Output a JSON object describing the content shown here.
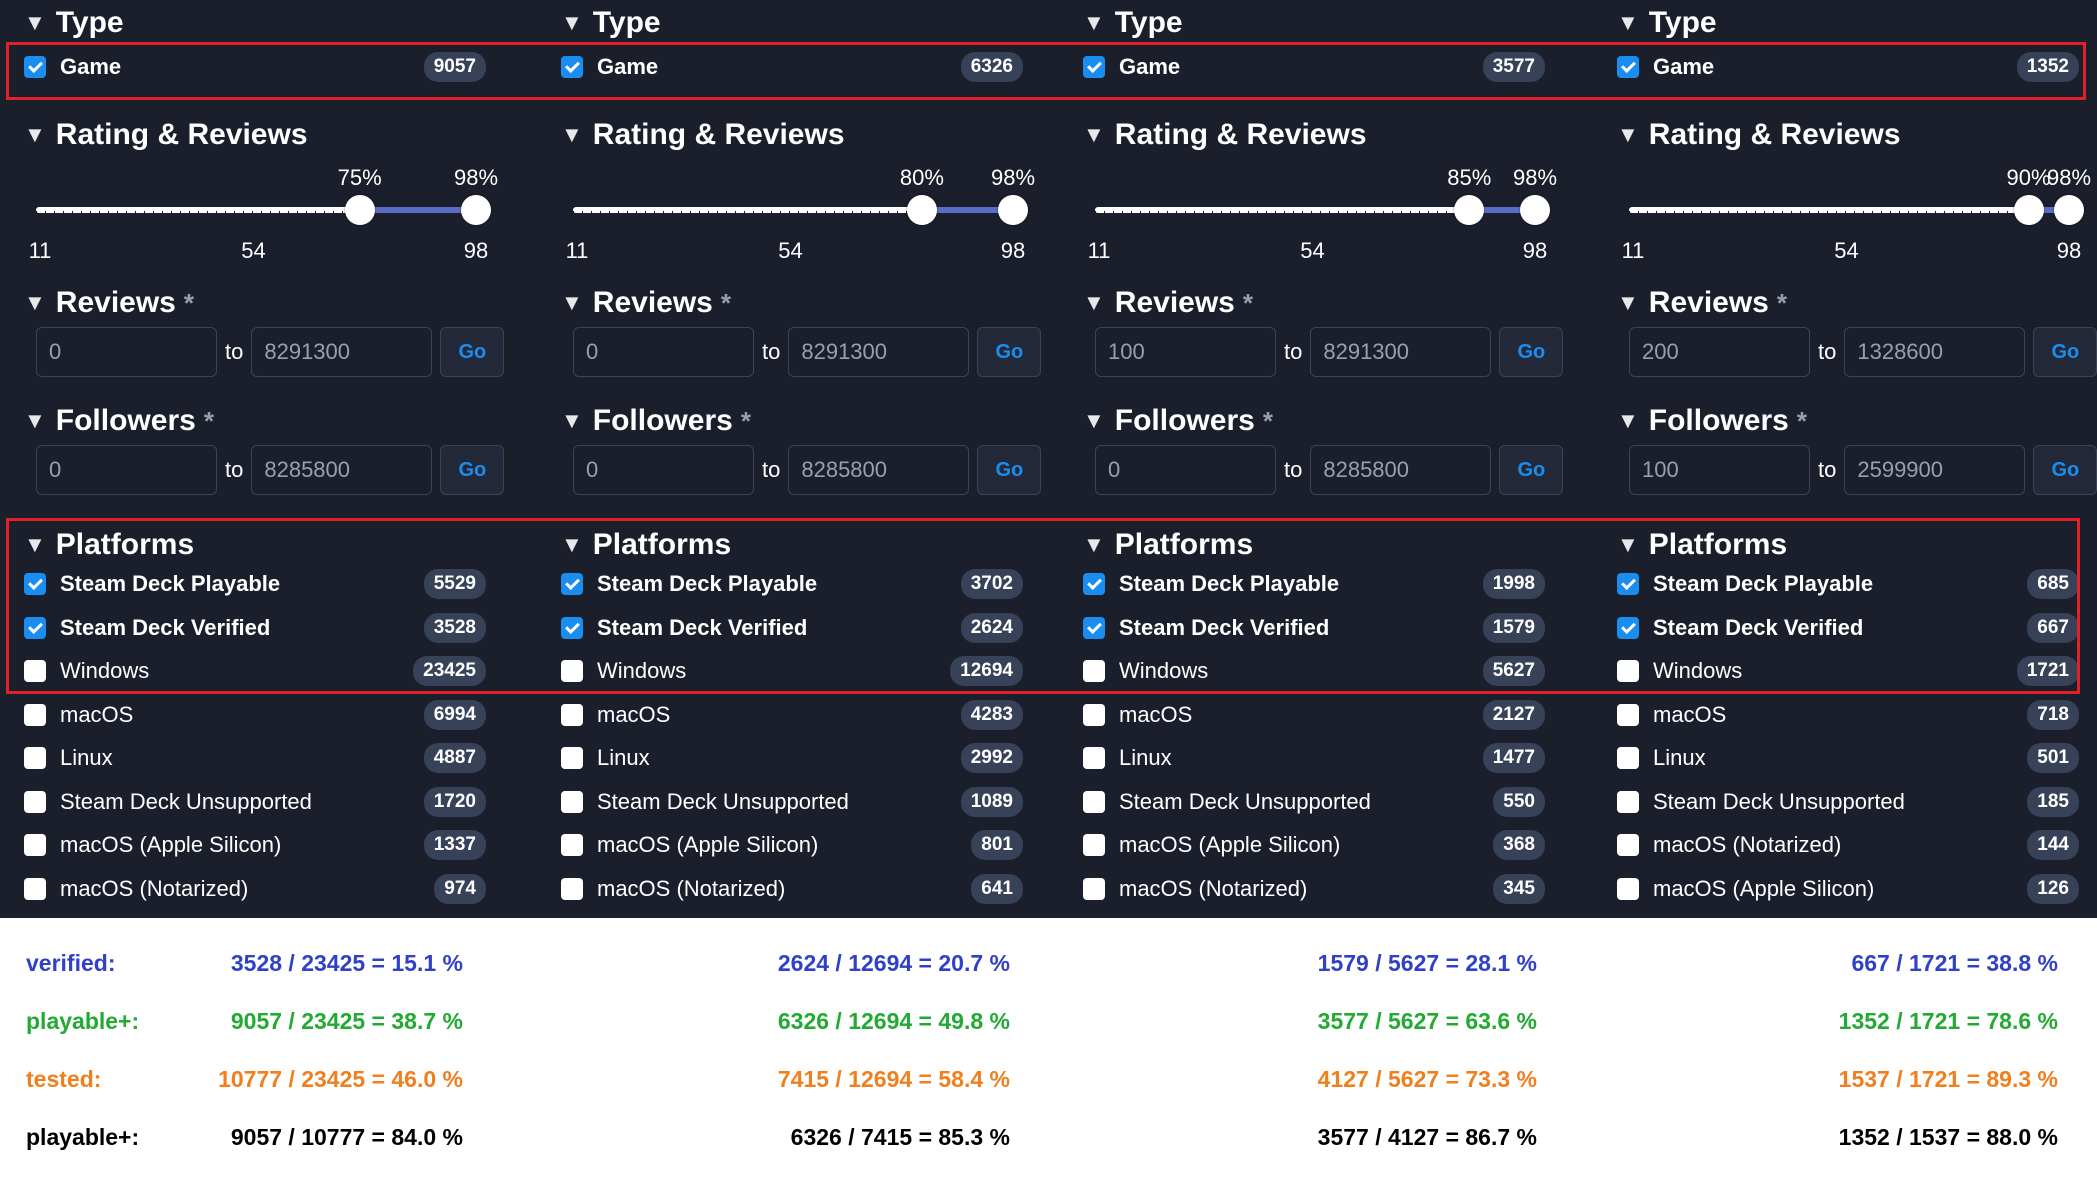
{
  "labels": {
    "type": "Type",
    "game": "Game",
    "rating": "Rating & Reviews",
    "reviews": "Reviews",
    "followers": "Followers",
    "platforms": "Platforms",
    "to": "to",
    "go": "Go",
    "asterisk": "*"
  },
  "axis": {
    "min": "11",
    "mid": "54",
    "max": "98"
  },
  "columns": [
    {
      "game_count": "9057",
      "slider_low": 75,
      "slider_high": 98,
      "pct_low": "75%",
      "pct_high": "98%",
      "reviews_from": "0",
      "reviews_to": "8291300",
      "followers_from": "0",
      "followers_to": "8285800",
      "platforms": [
        {
          "label": "Steam Deck Playable",
          "count": "5529",
          "checked": true
        },
        {
          "label": "Steam Deck Verified",
          "count": "3528",
          "checked": true
        },
        {
          "label": "Windows",
          "count": "23425",
          "checked": false
        },
        {
          "label": "macOS",
          "count": "6994",
          "checked": false
        },
        {
          "label": "Linux",
          "count": "4887",
          "checked": false
        },
        {
          "label": "Steam Deck Unsupported",
          "count": "1720",
          "checked": false
        },
        {
          "label": "macOS (Apple Silicon)",
          "count": "1337",
          "checked": false
        },
        {
          "label": "macOS (Notarized)",
          "count": "974",
          "checked": false
        }
      ]
    },
    {
      "game_count": "6326",
      "slider_low": 80,
      "slider_high": 98,
      "pct_low": "80%",
      "pct_high": "98%",
      "reviews_from": "0",
      "reviews_to": "8291300",
      "followers_from": "0",
      "followers_to": "8285800",
      "platforms": [
        {
          "label": "Steam Deck Playable",
          "count": "3702",
          "checked": true
        },
        {
          "label": "Steam Deck Verified",
          "count": "2624",
          "checked": true
        },
        {
          "label": "Windows",
          "count": "12694",
          "checked": false
        },
        {
          "label": "macOS",
          "count": "4283",
          "checked": false
        },
        {
          "label": "Linux",
          "count": "2992",
          "checked": false
        },
        {
          "label": "Steam Deck Unsupported",
          "count": "1089",
          "checked": false
        },
        {
          "label": "macOS (Apple Silicon)",
          "count": "801",
          "checked": false
        },
        {
          "label": "macOS (Notarized)",
          "count": "641",
          "checked": false
        }
      ]
    },
    {
      "game_count": "3577",
      "slider_low": 85,
      "slider_high": 98,
      "pct_low": "85%",
      "pct_high": "98%",
      "reviews_from": "100",
      "reviews_to": "8291300",
      "followers_from": "0",
      "followers_to": "8285800",
      "platforms": [
        {
          "label": "Steam Deck Playable",
          "count": "1998",
          "checked": true
        },
        {
          "label": "Steam Deck Verified",
          "count": "1579",
          "checked": true
        },
        {
          "label": "Windows",
          "count": "5627",
          "checked": false
        },
        {
          "label": "macOS",
          "count": "2127",
          "checked": false
        },
        {
          "label": "Linux",
          "count": "1477",
          "checked": false
        },
        {
          "label": "Steam Deck Unsupported",
          "count": "550",
          "checked": false
        },
        {
          "label": "macOS (Apple Silicon)",
          "count": "368",
          "checked": false
        },
        {
          "label": "macOS (Notarized)",
          "count": "345",
          "checked": false
        }
      ]
    },
    {
      "game_count": "1352",
      "slider_low": 90,
      "slider_high": 98,
      "pct_low": "90%",
      "pct_high": "98%",
      "reviews_from": "200",
      "reviews_to": "1328600",
      "followers_from": "100",
      "followers_to": "2599900",
      "platforms": [
        {
          "label": "Steam Deck Playable",
          "count": "685",
          "checked": true
        },
        {
          "label": "Steam Deck Verified",
          "count": "667",
          "checked": true
        },
        {
          "label": "Windows",
          "count": "1721",
          "checked": false
        },
        {
          "label": "macOS",
          "count": "718",
          "checked": false
        },
        {
          "label": "Linux",
          "count": "501",
          "checked": false
        },
        {
          "label": "Steam Deck Unsupported",
          "count": "185",
          "checked": false
        },
        {
          "label": "macOS (Notarized)",
          "count": "144",
          "checked": false
        },
        {
          "label": "macOS (Apple Silicon)",
          "count": "126",
          "checked": false
        }
      ]
    }
  ],
  "stats": {
    "row_labels": [
      "verified:",
      "playable+:",
      "tested:",
      "playable+:"
    ],
    "values": [
      [
        "3528 / 23425 = 15.1 %",
        "2624 / 12694 = 20.7 %",
        "1579 / 5627 = 28.1 %",
        "667 / 1721 = 38.8 %"
      ],
      [
        "9057 / 23425 = 38.7 %",
        "6326 / 12694 = 49.8 %",
        "3577 / 5627 = 63.6 %",
        "1352 / 1721 = 78.6 %"
      ],
      [
        "10777 / 23425 = 46.0 %",
        "7415 / 12694 = 58.4 %",
        "4127 / 5627 = 73.3 %",
        "1537 / 1721 = 89.3 %"
      ],
      [
        "9057 / 10777 = 84.0 %",
        "6326 / 7415 = 85.3 %",
        "3577 / 4127 = 86.7 %",
        "1352 / 1537 = 88.0 %"
      ]
    ]
  },
  "colors": {
    "background": "#1b1f2c",
    "checkbox": "#1a8df0",
    "highlight": "#e2202a",
    "verified": "#3040c8",
    "playable": "#22aa33",
    "tested": "#f07f1e"
  }
}
